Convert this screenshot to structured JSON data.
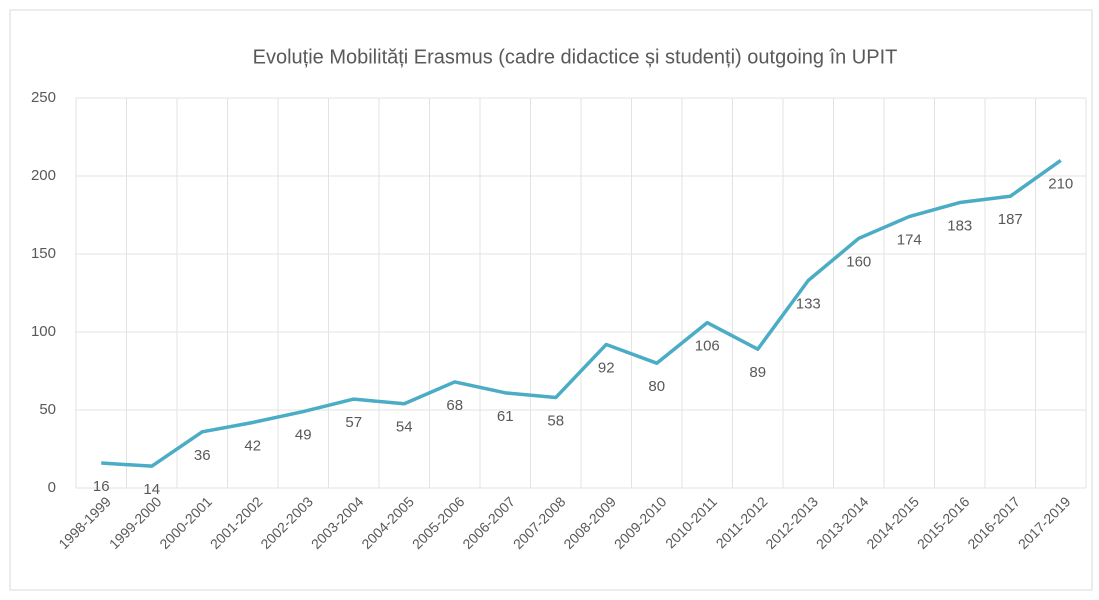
{
  "chart_data": {
    "type": "line",
    "title": "Evoluție Mobilități Erasmus (cadre didactice și studenți) outgoing în UPIT",
    "categories": [
      "1998-1999",
      "1999-2000",
      "2000-2001",
      "2001-2002",
      "2002-2003",
      "2003-2004",
      "2004-2005",
      "2005-2006",
      "2006-2007",
      "2007-2008",
      "2008-2009",
      "2009-2010",
      "2010-2011",
      "2011-2012",
      "2012-2013",
      "2013-2014",
      "2014-2015",
      "2015-2016",
      "2016-2017",
      "2017-2019"
    ],
    "values": [
      16,
      14,
      36,
      42,
      49,
      57,
      54,
      68,
      61,
      58,
      92,
      80,
      106,
      89,
      133,
      160,
      174,
      183,
      187,
      210
    ],
    "color": "#4bacc6",
    "ylim": [
      0,
      250
    ],
    "yticks": [
      0,
      50,
      100,
      150,
      200,
      250
    ],
    "grid": true
  }
}
